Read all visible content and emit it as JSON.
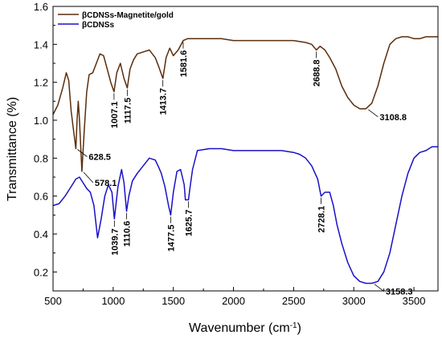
{
  "chart_data": {
    "type": "line",
    "title": "",
    "xlabel": "Wavenumber (cm",
    "xlabel_sup": "-1",
    "xlabel_tail": ")",
    "ylabel": "Transmittance (%)",
    "xlim": [
      500,
      3700
    ],
    "ylim": [
      0.1,
      1.6
    ],
    "x_ticks": [
      500,
      1000,
      1500,
      2000,
      2500,
      3000,
      3500
    ],
    "y_ticks": [
      0.2,
      0.4,
      0.6,
      0.8,
      1.0,
      1.2,
      1.4,
      1.6
    ],
    "x_tick_labels": [
      "500",
      "1000",
      "1500",
      "2000",
      "2500",
      "3000",
      "3500"
    ],
    "y_tick_labels": [
      "0.2",
      "0.4",
      "0.6",
      "0.8",
      "1.0",
      "1.2",
      "1.4",
      "1.6"
    ],
    "grid": false,
    "legend_position": "top-left",
    "series": [
      {
        "name": "βCDNSs-Magnetite/gold",
        "color": "#5a2d0c",
        "x": [
          500,
          540,
          580,
          610,
          630,
          650,
          670,
          690,
          700,
          710,
          720,
          740,
          760,
          780,
          800,
          830,
          860,
          890,
          920,
          950,
          980,
          1007,
          1030,
          1060,
          1090,
          1117,
          1140,
          1170,
          1200,
          1250,
          1300,
          1350,
          1380,
          1413,
          1440,
          1470,
          1500,
          1540,
          1582,
          1620,
          1700,
          1800,
          1900,
          2000,
          2100,
          2200,
          2300,
          2400,
          2500,
          2600,
          2650,
          2689,
          2720,
          2760,
          2800,
          2850,
          2900,
          2950,
          3000,
          3050,
          3100,
          3150,
          3200,
          3250,
          3300,
          3350,
          3400,
          3450,
          3500,
          3550,
          3600,
          3650,
          3700
        ],
        "y": [
          1.03,
          1.08,
          1.17,
          1.25,
          1.21,
          1.05,
          0.95,
          0.85,
          1.0,
          1.1,
          1.0,
          0.73,
          0.95,
          1.15,
          1.24,
          1.25,
          1.3,
          1.35,
          1.34,
          1.27,
          1.2,
          1.15,
          1.25,
          1.3,
          1.22,
          1.17,
          1.27,
          1.32,
          1.35,
          1.36,
          1.37,
          1.33,
          1.28,
          1.22,
          1.33,
          1.38,
          1.34,
          1.37,
          1.42,
          1.43,
          1.43,
          1.43,
          1.43,
          1.42,
          1.42,
          1.42,
          1.42,
          1.42,
          1.42,
          1.41,
          1.4,
          1.37,
          1.39,
          1.37,
          1.33,
          1.27,
          1.18,
          1.12,
          1.08,
          1.06,
          1.06,
          1.09,
          1.18,
          1.3,
          1.4,
          1.43,
          1.44,
          1.44,
          1.43,
          1.43,
          1.44,
          1.44,
          1.44
        ]
      },
      {
        "name": "βCDNSs",
        "color": "#1a10c8",
        "x": [
          500,
          550,
          600,
          630,
          660,
          690,
          720,
          750,
          780,
          810,
          840,
          870,
          900,
          930,
          960,
          990,
          1010,
          1040,
          1070,
          1090,
          1111,
          1130,
          1160,
          1200,
          1250,
          1300,
          1350,
          1380,
          1400,
          1430,
          1460,
          1478,
          1500,
          1530,
          1560,
          1590,
          1600,
          1626,
          1640,
          1660,
          1700,
          1800,
          1900,
          2000,
          2100,
          2200,
          2300,
          2400,
          2500,
          2550,
          2600,
          2650,
          2700,
          2728,
          2760,
          2800,
          2830,
          2860,
          2900,
          2950,
          3000,
          3050,
          3100,
          3150,
          3200,
          3250,
          3300,
          3350,
          3400,
          3450,
          3500,
          3550,
          3600,
          3650,
          3700
        ],
        "y": [
          0.55,
          0.56,
          0.6,
          0.63,
          0.66,
          0.69,
          0.7,
          0.67,
          0.64,
          0.62,
          0.55,
          0.38,
          0.48,
          0.6,
          0.66,
          0.62,
          0.48,
          0.65,
          0.74,
          0.67,
          0.52,
          0.6,
          0.68,
          0.72,
          0.76,
          0.8,
          0.79,
          0.75,
          0.72,
          0.65,
          0.55,
          0.5,
          0.62,
          0.73,
          0.74,
          0.66,
          0.58,
          0.58,
          0.65,
          0.74,
          0.84,
          0.85,
          0.85,
          0.84,
          0.84,
          0.84,
          0.84,
          0.84,
          0.83,
          0.82,
          0.8,
          0.76,
          0.69,
          0.6,
          0.62,
          0.62,
          0.55,
          0.45,
          0.35,
          0.25,
          0.18,
          0.15,
          0.14,
          0.14,
          0.15,
          0.2,
          0.3,
          0.45,
          0.6,
          0.72,
          0.8,
          0.83,
          0.84,
          0.86,
          0.86
        ]
      }
    ],
    "annotations": [
      {
        "text": "1007.1",
        "x": 1007,
        "y": 1.15,
        "series": 0,
        "rotate": true
      },
      {
        "text": "1117.5",
        "x": 1117,
        "y": 1.17,
        "series": 0,
        "rotate": true
      },
      {
        "text": "1413.7",
        "x": 1413,
        "y": 1.22,
        "series": 0,
        "rotate": true
      },
      {
        "text": "1581.6",
        "x": 1582,
        "y": 1.42,
        "series": 0,
        "rotate": true
      },
      {
        "text": "2688.8",
        "x": 2689,
        "y": 1.37,
        "series": 0,
        "rotate": true
      },
      {
        "text": "3108.8",
        "x": 3108,
        "y": 1.06,
        "series": 0,
        "rotate": false
      },
      {
        "text": "628.5",
        "x": 690,
        "y": 0.85,
        "series": 0,
        "rotate": false
      },
      {
        "text": "578.1",
        "x": 740,
        "y": 0.73,
        "series": 0,
        "rotate": false
      },
      {
        "text": "1039.7",
        "x": 1010,
        "y": 0.48,
        "series": 1,
        "rotate": true
      },
      {
        "text": "1110.6",
        "x": 1111,
        "y": 0.52,
        "series": 1,
        "rotate": true
      },
      {
        "text": "1477.5",
        "x": 1478,
        "y": 0.5,
        "series": 1,
        "rotate": true
      },
      {
        "text": "1625.7",
        "x": 1626,
        "y": 0.58,
        "series": 1,
        "rotate": true
      },
      {
        "text": "2728.1",
        "x": 2728,
        "y": 0.6,
        "series": 1,
        "rotate": true
      },
      {
        "text": "3158.3",
        "x": 3158,
        "y": 0.14,
        "series": 1,
        "rotate": false
      }
    ]
  }
}
